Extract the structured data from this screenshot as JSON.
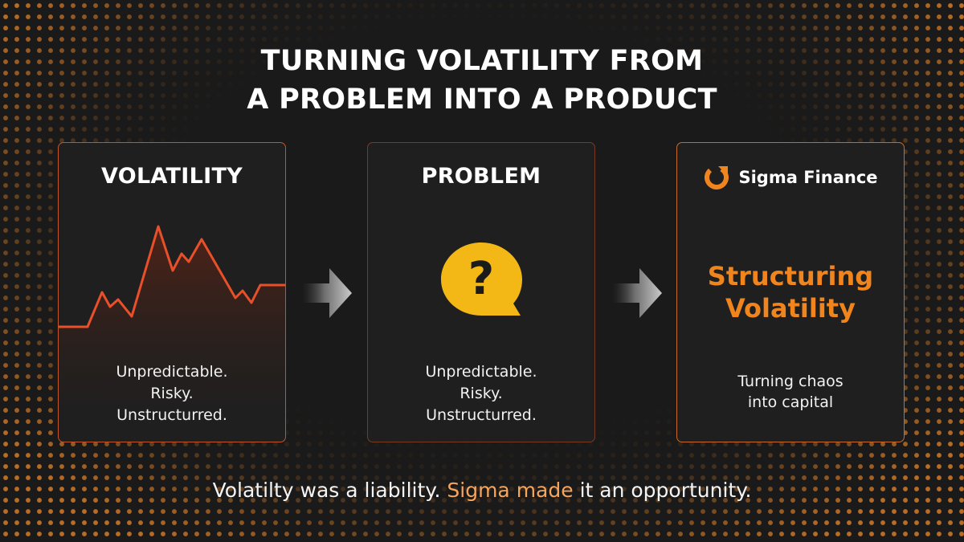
{
  "title": {
    "line1": "TURNING VOLATILITY FROM",
    "line2": "A PROBLEM INTO A PRODUCT"
  },
  "cards": [
    {
      "heading": "VOLATILITY",
      "lines": [
        "Unpredictable.",
        "Risky.",
        "Unstructurred."
      ]
    },
    {
      "heading": "PROBLEM",
      "icon": "question-bubble-icon",
      "lines": [
        "Unpredictable.",
        "Risky.",
        "Unstructurred."
      ]
    },
    {
      "brand": "Sigma Finance",
      "brand_icon": "sigma-logo-icon",
      "headline": [
        "Structuring",
        "Volatility"
      ],
      "lines": [
        "Turning chaos",
        "into capital"
      ]
    }
  ],
  "tagline": {
    "part1": "Volatilty was a liability. ",
    "accent": "Sigma made",
    "part2": " it an opportunity."
  },
  "colors": {
    "background": "#1a1a1a",
    "accent_orange": "#f0851e",
    "line_red": "#e8502a",
    "question_yellow": "#f3b716"
  }
}
